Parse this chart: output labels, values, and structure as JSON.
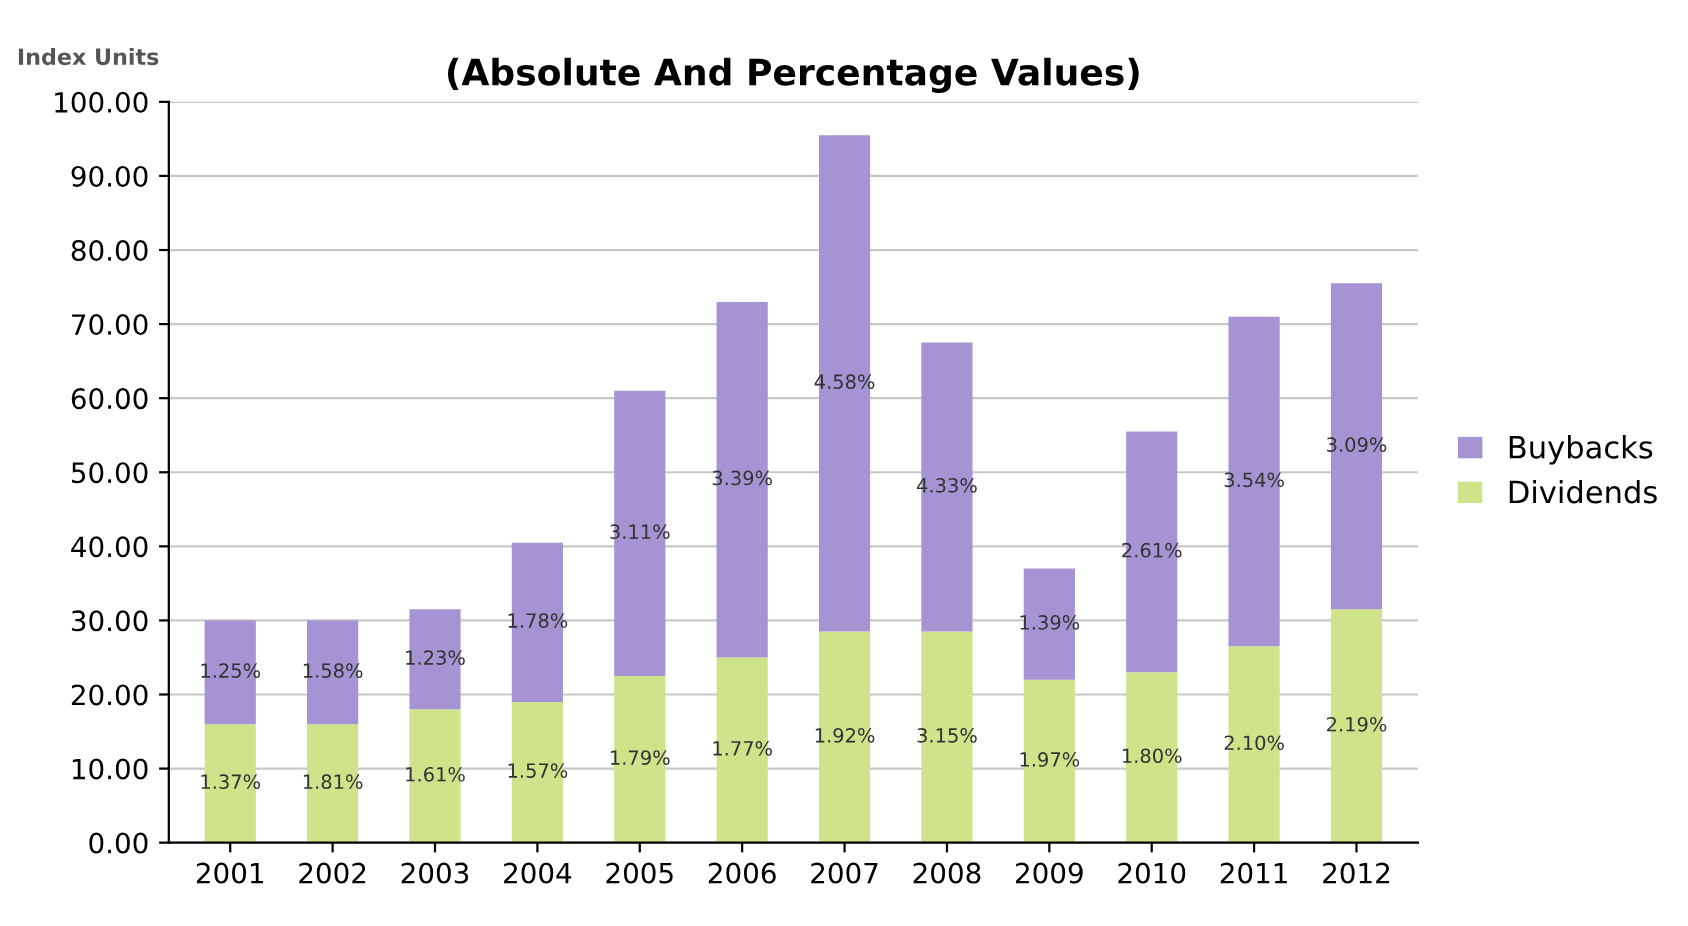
{
  "chart_data": {
    "type": "bar",
    "title": "(Absolute And Percentage Values)",
    "ylabel": "Index Units",
    "categories": [
      "2001",
      "2002",
      "2003",
      "2004",
      "2005",
      "2006",
      "2007",
      "2008",
      "2009",
      "2010",
      "2011",
      "2012"
    ],
    "stacked": true,
    "series": [
      {
        "name": "Dividends",
        "color": "#cfe38a",
        "values": [
          16,
          16,
          18,
          19,
          22.5,
          25,
          28.5,
          28.5,
          22,
          23,
          26.5,
          31.5
        ]
      },
      {
        "name": "Buybacks",
        "color": "#a593d4",
        "values": [
          14,
          14,
          13.5,
          21.5,
          38.5,
          48,
          67,
          39,
          15,
          32.5,
          44.5,
          44
        ]
      }
    ],
    "annotations": [
      "1.37%",
      "1.81%",
      "1.61%",
      "1.57%",
      "1.79%",
      "1.77%",
      "1.92%",
      "3.15%",
      "1.97%",
      "1.80%",
      "2.10%",
      "2.19%",
      "1.25%",
      "1.58%",
      "1.23%",
      "1.78%",
      "3.11%",
      "3.39%",
      "4.58%",
      "4.33%",
      "1.39%",
      "2.61%",
      "3.54%",
      "3.09%"
    ],
    "ylim": [
      0,
      100
    ],
    "yticks": [
      {
        "value": 0,
        "label": "0.00"
      },
      {
        "value": 10,
        "label": "10.00"
      },
      {
        "value": 20,
        "label": "20.00"
      },
      {
        "value": 30,
        "label": "30.00"
      },
      {
        "value": 40,
        "label": "40.00"
      },
      {
        "value": 50,
        "label": "50.00"
      },
      {
        "value": 60,
        "label": "60.00"
      },
      {
        "value": 70,
        "label": "70.00"
      },
      {
        "value": 80,
        "label": "80.00"
      },
      {
        "value": 90,
        "label": "90.00"
      },
      {
        "value": 100,
        "label": "100.00"
      }
    ],
    "grid": "y",
    "legend": "right"
  }
}
